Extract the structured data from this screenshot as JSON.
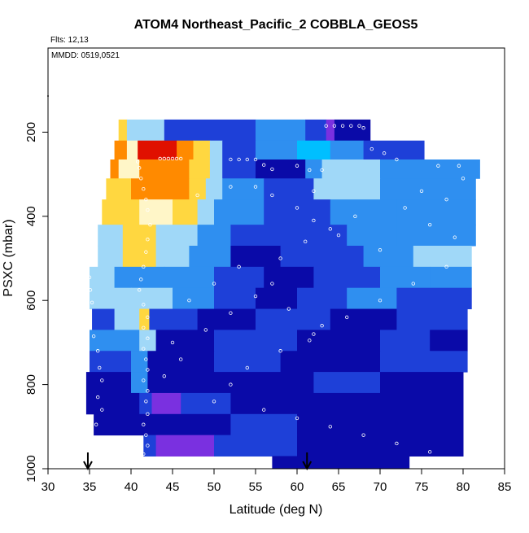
{
  "chart_data": {
    "type": "heatmap",
    "title": "ATOM4 Northeast_Pacific_2 COBBLA_GEOS5",
    "subtitle_flts": "Flts: 12,13",
    "subtitle_mmdd": "MMDD: 0519,0521",
    "xlabel": "Latitude (deg N)",
    "ylabel": "PSXC (mbar)",
    "xlim": [
      30,
      85
    ],
    "ylim": [
      1000,
      0
    ],
    "x_ticks": [
      "30",
      "35",
      "40",
      "45",
      "50",
      "55",
      "60",
      "65",
      "70",
      "75",
      "80",
      "85"
    ],
    "y_ticks": [
      "200",
      "400",
      "600",
      "800",
      "1000"
    ],
    "arrows_x": [
      34.8,
      61.2
    ],
    "grid": false,
    "legend": "none",
    "colors": {
      "dark_blue": "#0a0aa8",
      "blue": "#1e40d8",
      "mid_blue": "#2f8ff0",
      "light_blue": "#a0d8f8",
      "cyan": "#00bfff",
      "pale": "#fff6c8",
      "yellow": "#ffd740",
      "orange": "#ff8a00",
      "red": "#e01000",
      "purple": "#7a30e0"
    },
    "bands": [
      {
        "p_top": 170,
        "p_bot": 220,
        "x_min": 38.5,
        "x_max": 68.8,
        "segments": [
          [
            38.5,
            39.5,
            "yellow"
          ],
          [
            39.5,
            44,
            "light_blue"
          ],
          [
            44,
            55,
            "blue"
          ],
          [
            55,
            61,
            "mid_blue"
          ],
          [
            61,
            63.5,
            "blue"
          ],
          [
            63.5,
            64.5,
            "purple"
          ],
          [
            64.5,
            68.8,
            "dark_blue"
          ]
        ]
      },
      {
        "p_top": 220,
        "p_bot": 265,
        "x_min": 38,
        "x_max": 75.3,
        "segments": [
          [
            38,
            39.5,
            "orange"
          ],
          [
            39.5,
            40.8,
            "pale"
          ],
          [
            40.8,
            45.5,
            "red"
          ],
          [
            45.5,
            47.5,
            "orange"
          ],
          [
            47.5,
            49.5,
            "yellow"
          ],
          [
            49.5,
            51,
            "light_blue"
          ],
          [
            51,
            55,
            "blue"
          ],
          [
            55,
            60,
            "mid_blue"
          ],
          [
            60,
            64,
            "cyan"
          ],
          [
            64,
            68,
            "mid_blue"
          ],
          [
            68,
            75.3,
            "blue"
          ]
        ]
      },
      {
        "p_top": 265,
        "p_bot": 310,
        "x_min": 37.5,
        "x_max": 82,
        "segments": [
          [
            37.5,
            38.5,
            "orange"
          ],
          [
            38.5,
            41,
            "pale"
          ],
          [
            41,
            47,
            "orange"
          ],
          [
            47,
            49.5,
            "yellow"
          ],
          [
            49.5,
            51,
            "light_blue"
          ],
          [
            51,
            55,
            "blue"
          ],
          [
            55,
            61,
            "dark_blue"
          ],
          [
            61,
            63,
            "mid_blue"
          ],
          [
            63,
            70,
            "light_blue"
          ],
          [
            70,
            82,
            "mid_blue"
          ]
        ]
      },
      {
        "p_top": 310,
        "p_bot": 360,
        "x_min": 37,
        "x_max": 81.5,
        "segments": [
          [
            37,
            40,
            "yellow"
          ],
          [
            40,
            47,
            "orange"
          ],
          [
            47,
            49,
            "yellow"
          ],
          [
            49,
            51,
            "light_blue"
          ],
          [
            51,
            56,
            "mid_blue"
          ],
          [
            56,
            62,
            "blue"
          ],
          [
            62,
            70,
            "light_blue"
          ],
          [
            70,
            81.5,
            "mid_blue"
          ]
        ]
      },
      {
        "p_top": 360,
        "p_bot": 420,
        "x_min": 36.5,
        "x_max": 81.5,
        "segments": [
          [
            36.5,
            41,
            "yellow"
          ],
          [
            41,
            45,
            "pale"
          ],
          [
            45,
            48,
            "yellow"
          ],
          [
            48,
            50,
            "light_blue"
          ],
          [
            50,
            56,
            "mid_blue"
          ],
          [
            56,
            64,
            "blue"
          ],
          [
            64,
            72,
            "mid_blue"
          ],
          [
            72,
            81.5,
            "mid_blue"
          ]
        ]
      },
      {
        "p_top": 420,
        "p_bot": 470,
        "x_min": 36,
        "x_max": 81.5,
        "segments": [
          [
            36,
            39,
            "light_blue"
          ],
          [
            39,
            43,
            "yellow"
          ],
          [
            43,
            48,
            "light_blue"
          ],
          [
            48,
            52,
            "mid_blue"
          ],
          [
            52,
            60,
            "blue"
          ],
          [
            60,
            66,
            "blue"
          ],
          [
            66,
            72,
            "mid_blue"
          ],
          [
            72,
            81.5,
            "mid_blue"
          ]
        ]
      },
      {
        "p_top": 470,
        "p_bot": 520,
        "x_min": 36,
        "x_max": 81,
        "segments": [
          [
            36,
            39,
            "light_blue"
          ],
          [
            39,
            43,
            "yellow"
          ],
          [
            43,
            47,
            "light_blue"
          ],
          [
            47,
            52,
            "mid_blue"
          ],
          [
            52,
            58,
            "dark_blue"
          ],
          [
            58,
            68,
            "blue"
          ],
          [
            68,
            74,
            "mid_blue"
          ],
          [
            74,
            81,
            "light_blue"
          ]
        ]
      },
      {
        "p_top": 520,
        "p_bot": 570,
        "x_min": 35,
        "x_max": 81,
        "segments": [
          [
            35,
            38,
            "light_blue"
          ],
          [
            38,
            44,
            "mid_blue"
          ],
          [
            44,
            50,
            "mid_blue"
          ],
          [
            50,
            56,
            "blue"
          ],
          [
            56,
            62,
            "dark_blue"
          ],
          [
            62,
            70,
            "blue"
          ],
          [
            70,
            76,
            "mid_blue"
          ],
          [
            76,
            81,
            "mid_blue"
          ]
        ]
      },
      {
        "p_top": 570,
        "p_bot": 620,
        "x_min": 35,
        "x_max": 81,
        "segments": [
          [
            35,
            40,
            "light_blue"
          ],
          [
            40,
            45,
            "light_blue"
          ],
          [
            45,
            50,
            "mid_blue"
          ],
          [
            50,
            55,
            "blue"
          ],
          [
            55,
            60,
            "dark_blue"
          ],
          [
            60,
            66,
            "blue"
          ],
          [
            66,
            72,
            "mid_blue"
          ],
          [
            72,
            81,
            "blue"
          ]
        ]
      },
      {
        "p_top": 620,
        "p_bot": 670,
        "x_min": 35.3,
        "x_max": 80.5,
        "segments": [
          [
            35.3,
            38,
            "blue"
          ],
          [
            38,
            41,
            "light_blue"
          ],
          [
            41,
            42.2,
            "yellow"
          ],
          [
            42.2,
            48,
            "blue"
          ],
          [
            48,
            55,
            "dark_blue"
          ],
          [
            55,
            64,
            "blue"
          ],
          [
            64,
            72,
            "dark_blue"
          ],
          [
            72,
            80.5,
            "blue"
          ]
        ]
      },
      {
        "p_top": 670,
        "p_bot": 720,
        "x_min": 35,
        "x_max": 80.5,
        "segments": [
          [
            35,
            41,
            "mid_blue"
          ],
          [
            41,
            43,
            "light_blue"
          ],
          [
            43,
            50,
            "dark_blue"
          ],
          [
            50,
            60,
            "blue"
          ],
          [
            60,
            70,
            "dark_blue"
          ],
          [
            70,
            76,
            "blue"
          ],
          [
            76,
            80.5,
            "dark_blue"
          ]
        ]
      },
      {
        "p_top": 720,
        "p_bot": 770,
        "x_min": 35,
        "x_max": 80.5,
        "segments": [
          [
            35,
            40,
            "blue"
          ],
          [
            40,
            42,
            "mid_blue"
          ],
          [
            42,
            50,
            "dark_blue"
          ],
          [
            50,
            58,
            "blue"
          ],
          [
            58,
            70,
            "dark_blue"
          ],
          [
            70,
            80.5,
            "blue"
          ]
        ]
      },
      {
        "p_top": 770,
        "p_bot": 820,
        "x_min": 34.6,
        "x_max": 80,
        "segments": [
          [
            34.6,
            40,
            "dark_blue"
          ],
          [
            40,
            42,
            "mid_blue"
          ],
          [
            42,
            50,
            "dark_blue"
          ],
          [
            50,
            62,
            "dark_blue"
          ],
          [
            62,
            70,
            "blue"
          ],
          [
            70,
            80,
            "dark_blue"
          ]
        ]
      },
      {
        "p_top": 820,
        "p_bot": 870,
        "x_min": 34.6,
        "x_max": 80,
        "segments": [
          [
            34.6,
            41,
            "dark_blue"
          ],
          [
            41,
            42.5,
            "blue"
          ],
          [
            42.5,
            46,
            "purple"
          ],
          [
            46,
            52,
            "blue"
          ],
          [
            52,
            65,
            "dark_blue"
          ],
          [
            65,
            80,
            "dark_blue"
          ]
        ]
      },
      {
        "p_top": 870,
        "p_bot": 920,
        "x_min": 35.5,
        "x_max": 80,
        "segments": [
          [
            35.5,
            42,
            "dark_blue"
          ],
          [
            42,
            52,
            "dark_blue"
          ],
          [
            52,
            60,
            "blue"
          ],
          [
            60,
            65,
            "dark_blue"
          ],
          [
            65,
            80,
            "dark_blue"
          ]
        ]
      },
      {
        "p_top": 920,
        "p_bot": 970,
        "x_min": 41.5,
        "x_max": 80,
        "segments": [
          [
            41.5,
            43,
            "blue"
          ],
          [
            43,
            50,
            "purple"
          ],
          [
            50,
            56,
            "blue"
          ],
          [
            56,
            60,
            "blue"
          ],
          [
            60,
            65,
            "dark_blue"
          ],
          [
            65,
            80,
            "dark_blue"
          ]
        ]
      },
      {
        "p_top": 970,
        "p_bot": 1000,
        "x_min": 57,
        "x_max": 73.5,
        "segments": [
          [
            57,
            60,
            "dark_blue"
          ],
          [
            60,
            73.5,
            "dark_blue"
          ]
        ]
      }
    ],
    "points": [
      [
        63.5,
        185
      ],
      [
        64.5,
        185
      ],
      [
        65.5,
        185
      ],
      [
        66.5,
        185
      ],
      [
        67.5,
        185
      ],
      [
        68,
        190
      ],
      [
        43.5,
        263
      ],
      [
        44,
        263
      ],
      [
        44.5,
        263
      ],
      [
        45,
        263
      ],
      [
        45.5,
        263
      ],
      [
        46,
        263
      ],
      [
        52,
        265
      ],
      [
        53,
        265
      ],
      [
        54,
        265
      ],
      [
        55,
        265
      ],
      [
        56,
        278
      ],
      [
        57,
        288
      ],
      [
        60,
        280
      ],
      [
        61.5,
        290
      ],
      [
        63,
        290
      ],
      [
        69,
        240
      ],
      [
        70.5,
        250
      ],
      [
        72,
        265
      ],
      [
        77,
        280
      ],
      [
        79.5,
        280
      ],
      [
        40.8,
        270
      ],
      [
        41,
        285
      ],
      [
        41.2,
        310
      ],
      [
        41.5,
        335
      ],
      [
        41.8,
        360
      ],
      [
        42,
        385
      ],
      [
        42.3,
        420
      ],
      [
        42,
        455
      ],
      [
        41.8,
        485
      ],
      [
        41.5,
        520
      ],
      [
        41.2,
        550
      ],
      [
        41,
        575
      ],
      [
        41.5,
        610
      ],
      [
        42,
        640
      ],
      [
        41.5,
        665
      ],
      [
        42,
        690
      ],
      [
        41.5,
        715
      ],
      [
        41.8,
        740
      ],
      [
        42,
        765
      ],
      [
        41.5,
        790
      ],
      [
        42,
        815
      ],
      [
        41.8,
        840
      ],
      [
        42,
        870
      ],
      [
        41.5,
        895
      ],
      [
        41.8,
        920
      ],
      [
        42,
        945
      ],
      [
        41.5,
        965
      ],
      [
        35,
        545
      ],
      [
        35.1,
        575
      ],
      [
        35.3,
        605
      ],
      [
        34.8,
        640
      ],
      [
        35,
        660
      ],
      [
        35.5,
        685
      ],
      [
        36,
        720
      ],
      [
        36.2,
        760
      ],
      [
        36.5,
        790
      ],
      [
        36,
        830
      ],
      [
        36.5,
        860
      ],
      [
        35.8,
        895
      ],
      [
        48,
        350
      ],
      [
        52,
        330
      ],
      [
        55,
        330
      ],
      [
        57,
        350
      ],
      [
        60,
        380
      ],
      [
        62,
        410
      ],
      [
        65,
        445
      ],
      [
        70,
        480
      ],
      [
        73,
        380
      ],
      [
        76,
        420
      ],
      [
        79,
        450
      ],
      [
        78,
        520
      ],
      [
        74,
        560
      ],
      [
        70,
        600
      ],
      [
        66,
        640
      ],
      [
        62,
        680
      ],
      [
        58,
        720
      ],
      [
        54,
        760
      ],
      [
        52,
        800
      ],
      [
        50,
        840
      ],
      [
        56,
        860
      ],
      [
        60,
        880
      ],
      [
        64,
        900
      ],
      [
        68,
        920
      ],
      [
        72,
        940
      ],
      [
        76,
        960
      ],
      [
        45,
        700
      ],
      [
        46,
        740
      ],
      [
        44,
        780
      ],
      [
        47,
        600
      ],
      [
        50,
        560
      ],
      [
        53,
        520
      ],
      [
        58,
        500
      ],
      [
        61,
        460
      ],
      [
        64,
        430
      ],
      [
        67,
        400
      ],
      [
        75,
        340
      ],
      [
        80,
        310
      ],
      [
        78,
        360
      ],
      [
        62,
        340
      ],
      [
        61.5,
        695
      ],
      [
        63,
        660
      ],
      [
        59,
        620
      ],
      [
        55,
        590
      ],
      [
        52,
        630
      ],
      [
        49,
        670
      ],
      [
        57,
        560
      ]
    ]
  }
}
